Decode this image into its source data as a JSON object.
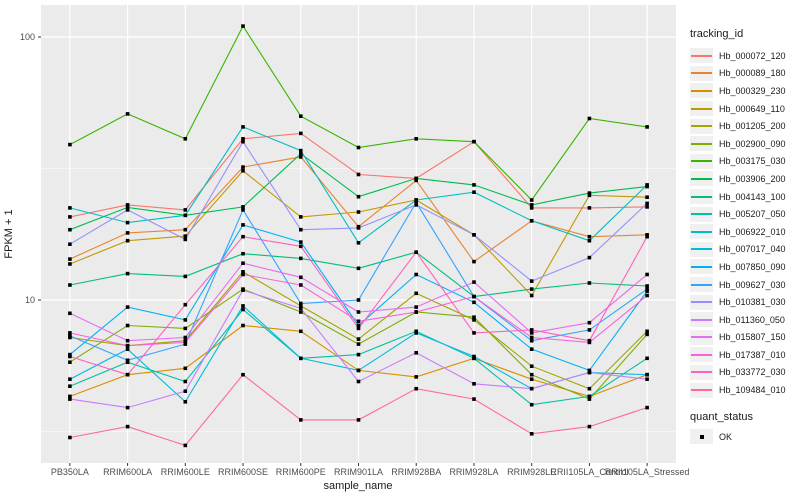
{
  "figure": {
    "background": "#FFFFFF",
    "panel_background": "#EBEBEB",
    "grid_color": "#FFFFFF",
    "tick_color": "#333333",
    "point_color": "#000000"
  },
  "chart_data": {
    "type": "line",
    "title": "",
    "xlabel": "sample_name",
    "ylabel": "FPKM + 1",
    "y_scale": "log10",
    "ylim": [
      2.4,
      127
    ],
    "y_major_ticks": [
      100,
      10
    ],
    "y_tick_labels": [
      "100",
      "10"
    ],
    "y_minor_ticks": [
      31.623,
      3.1623
    ],
    "grid": "on",
    "marker": "square",
    "legend": {
      "title": "tracking_id",
      "position": "right"
    },
    "quant_status": {
      "title": "quant_status",
      "items": [
        {
          "label": "OK",
          "marker": "square",
          "color": "#000000"
        }
      ]
    },
    "categories": [
      "PB350LA",
      "RRIM600LA",
      "RRIM600LE",
      "RRIM600SE",
      "RRIM600PE",
      "RRIM901LA",
      "RRIM928BA",
      "RRIM928LA",
      "RRIM928LE",
      "RRII105LA_Control",
      "RRII105LA_Stressed"
    ],
    "series": [
      {
        "name": "Hb_000072_120",
        "color": "#F8766D",
        "values": [
          20.7,
          23,
          22,
          41,
          43,
          30,
          29,
          40,
          22.4,
          22.4,
          22.6
        ]
      },
      {
        "name": "Hb_000089_180",
        "color": "#EA8331",
        "values": [
          14.3,
          18,
          18.5,
          32,
          35,
          19,
          28.5,
          14,
          20,
          17.4,
          17.7
        ]
      },
      {
        "name": "Hb_000329_230",
        "color": "#D89000",
        "values": [
          4.3,
          5.2,
          5.5,
          8,
          7.6,
          5.4,
          5.1,
          6,
          5,
          4.3,
          5.2
        ]
      },
      {
        "name": "Hb_000649_110",
        "color": "#C09B00",
        "values": [
          13.7,
          16.8,
          17.5,
          31,
          20.7,
          21.6,
          24,
          17.7,
          10.4,
          25,
          24.6
        ]
      },
      {
        "name": "Hb_001205_200",
        "color": "#A3A500",
        "values": [
          7.2,
          6.7,
          7,
          12.8,
          9.5,
          7.1,
          10.6,
          8.4,
          5.6,
          4.6,
          7.6
        ]
      },
      {
        "name": "Hb_002900_090",
        "color": "#7CAE00",
        "values": [
          5.8,
          8,
          7.8,
          11,
          9,
          6.8,
          9,
          8.6,
          5.2,
          4.2,
          7.4
        ]
      },
      {
        "name": "Hb_003175_030",
        "color": "#39B600",
        "values": [
          39,
          51,
          41,
          110,
          50,
          38,
          41,
          40,
          24,
          49,
          45.5
        ]
      },
      {
        "name": "Hb_003906_200",
        "color": "#00BB4E",
        "values": [
          18.5,
          22.5,
          21,
          22.6,
          36,
          24.7,
          29,
          27.4,
          23,
          25.5,
          27
        ]
      },
      {
        "name": "Hb_004143_100",
        "color": "#00BF7D",
        "values": [
          11.4,
          12.6,
          12.3,
          15,
          14.4,
          13.2,
          15.2,
          10.3,
          11,
          11.6,
          11.3
        ]
      },
      {
        "name": "Hb_005207_050",
        "color": "#00C1A3",
        "values": [
          4.7,
          5.8,
          4.9,
          9.2,
          6,
          6.2,
          7.6,
          6,
          4,
          4.3,
          6
        ]
      },
      {
        "name": "Hb_006922_010",
        "color": "#00BFC4",
        "values": [
          22.4,
          19.7,
          21,
          45.5,
          37,
          16.5,
          24,
          25.7,
          20,
          16.8,
          27.4
        ]
      },
      {
        "name": "Hb_007017_040",
        "color": "#00BAE0",
        "values": [
          5,
          6.5,
          4.1,
          9.5,
          6,
          5.4,
          7.5,
          6.1,
          4.6,
          5.3,
          5.2
        ]
      },
      {
        "name": "Hb_007850_090",
        "color": "#00B0F6",
        "values": [
          6.2,
          9.4,
          8.4,
          19.3,
          16.6,
          8,
          12.5,
          9.8,
          6.5,
          5.4,
          10.8
        ]
      },
      {
        "name": "Hb_009627_030",
        "color": "#35A2FF",
        "values": [
          7.3,
          5.9,
          6.8,
          22,
          9.7,
          10,
          23.5,
          10.3,
          7,
          7.7,
          11
        ]
      },
      {
        "name": "Hb_010381_030",
        "color": "#9590FF",
        "values": [
          16.3,
          22,
          17,
          40,
          18.5,
          18.8,
          23,
          17.7,
          11.8,
          14.5,
          23.3
        ]
      },
      {
        "name": "Hb_011360_050",
        "color": "#C77CFF",
        "values": [
          4.2,
          3.9,
          4.5,
          10.9,
          9.3,
          4.9,
          6.3,
          4.8,
          4.6,
          5.3,
          5
        ]
      },
      {
        "name": "Hb_015807_150",
        "color": "#E76BF3",
        "values": [
          8.9,
          7,
          7.2,
          13.8,
          12.2,
          9,
          9.4,
          11.7,
          7.5,
          8.2,
          12.5
        ]
      },
      {
        "name": "Hb_017387_010",
        "color": "#FA62DB",
        "values": [
          7.5,
          6.7,
          6.9,
          12.5,
          11.4,
          8.3,
          9,
          10.3,
          7.2,
          6.9,
          10.4
        ]
      },
      {
        "name": "Hb_033772_030",
        "color": "#FF62BC",
        "values": [
          6.1,
          5.2,
          9.6,
          17.4,
          16,
          7.8,
          15.2,
          7.5,
          7.7,
          7,
          17.4
        ]
      },
      {
        "name": "Hb_109484_010",
        "color": "#FF6A98",
        "values": [
          3,
          3.3,
          2.8,
          5.2,
          3.5,
          3.5,
          4.6,
          4.2,
          3.1,
          3.3,
          3.9
        ]
      }
    ]
  }
}
